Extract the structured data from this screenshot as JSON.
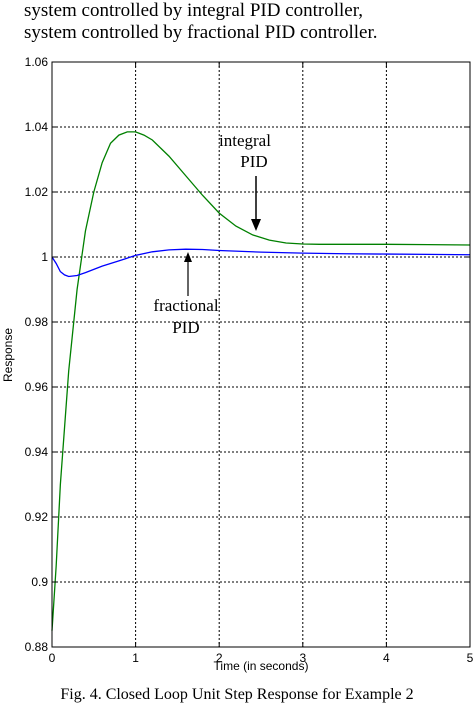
{
  "header": {
    "line1": "system controlled by integral PID controller,",
    "line2": "system controlled by fractional PID controller."
  },
  "caption": "Fig. 4. Closed Loop Unit Step Response for Example 2",
  "chart_data": {
    "type": "line",
    "xlabel": "Time (in seconds)",
    "ylabel": "Response",
    "xlim": [
      0,
      5
    ],
    "ylim": [
      0.88,
      1.06
    ],
    "x_ticks": [
      0,
      1,
      2,
      3,
      4,
      5
    ],
    "x_tick_labels": [
      "0",
      "1",
      "2",
      "3",
      "4",
      "5"
    ],
    "y_ticks": [
      0.88,
      0.9,
      0.92,
      0.94,
      0.96,
      0.98,
      1.0,
      1.02,
      1.04,
      1.06
    ],
    "y_tick_labels": [
      "0.88",
      "0.9",
      "0.92",
      "0.94",
      "0.96",
      "0.98",
      "1",
      "1.02",
      "1.04",
      "1.06"
    ],
    "grid": true,
    "series": [
      {
        "label_lines": [
          "integral",
          "PID"
        ],
        "color": "#008000",
        "x": [
          0,
          0.05,
          0.1,
          0.2,
          0.3,
          0.4,
          0.5,
          0.6,
          0.7,
          0.8,
          0.9,
          1.0,
          1.1,
          1.2,
          1.4,
          1.6,
          1.8,
          2.0,
          2.2,
          2.4,
          2.6,
          2.8,
          3.0,
          3.2,
          3.5,
          4.0,
          4.5,
          5.0
        ],
        "y": [
          0.885,
          0.905,
          0.93,
          0.965,
          0.99,
          1.008,
          1.02,
          1.029,
          1.035,
          1.0375,
          1.0385,
          1.0385,
          1.0375,
          1.036,
          1.031,
          1.025,
          1.019,
          1.0135,
          1.0095,
          1.0068,
          1.0052,
          1.0043,
          1.004,
          1.0039,
          1.0039,
          1.0039,
          1.0038,
          1.0037
        ]
      },
      {
        "label_lines": [
          "fractional",
          "PID"
        ],
        "color": "#0000ff",
        "x": [
          0,
          0.05,
          0.1,
          0.15,
          0.2,
          0.3,
          0.4,
          0.5,
          0.6,
          0.8,
          1.0,
          1.2,
          1.4,
          1.6,
          1.8,
          2.0,
          2.5,
          3.0,
          3.5,
          4.0,
          4.5,
          5.0
        ],
        "y": [
          1.0,
          0.998,
          0.9955,
          0.9945,
          0.994,
          0.9943,
          0.9952,
          0.9962,
          0.9972,
          0.9988,
          1.0005,
          1.0016,
          1.0022,
          1.0024,
          1.0023,
          1.002,
          1.0015,
          1.0012,
          1.001,
          1.0009,
          1.0008,
          1.0007
        ]
      }
    ]
  }
}
